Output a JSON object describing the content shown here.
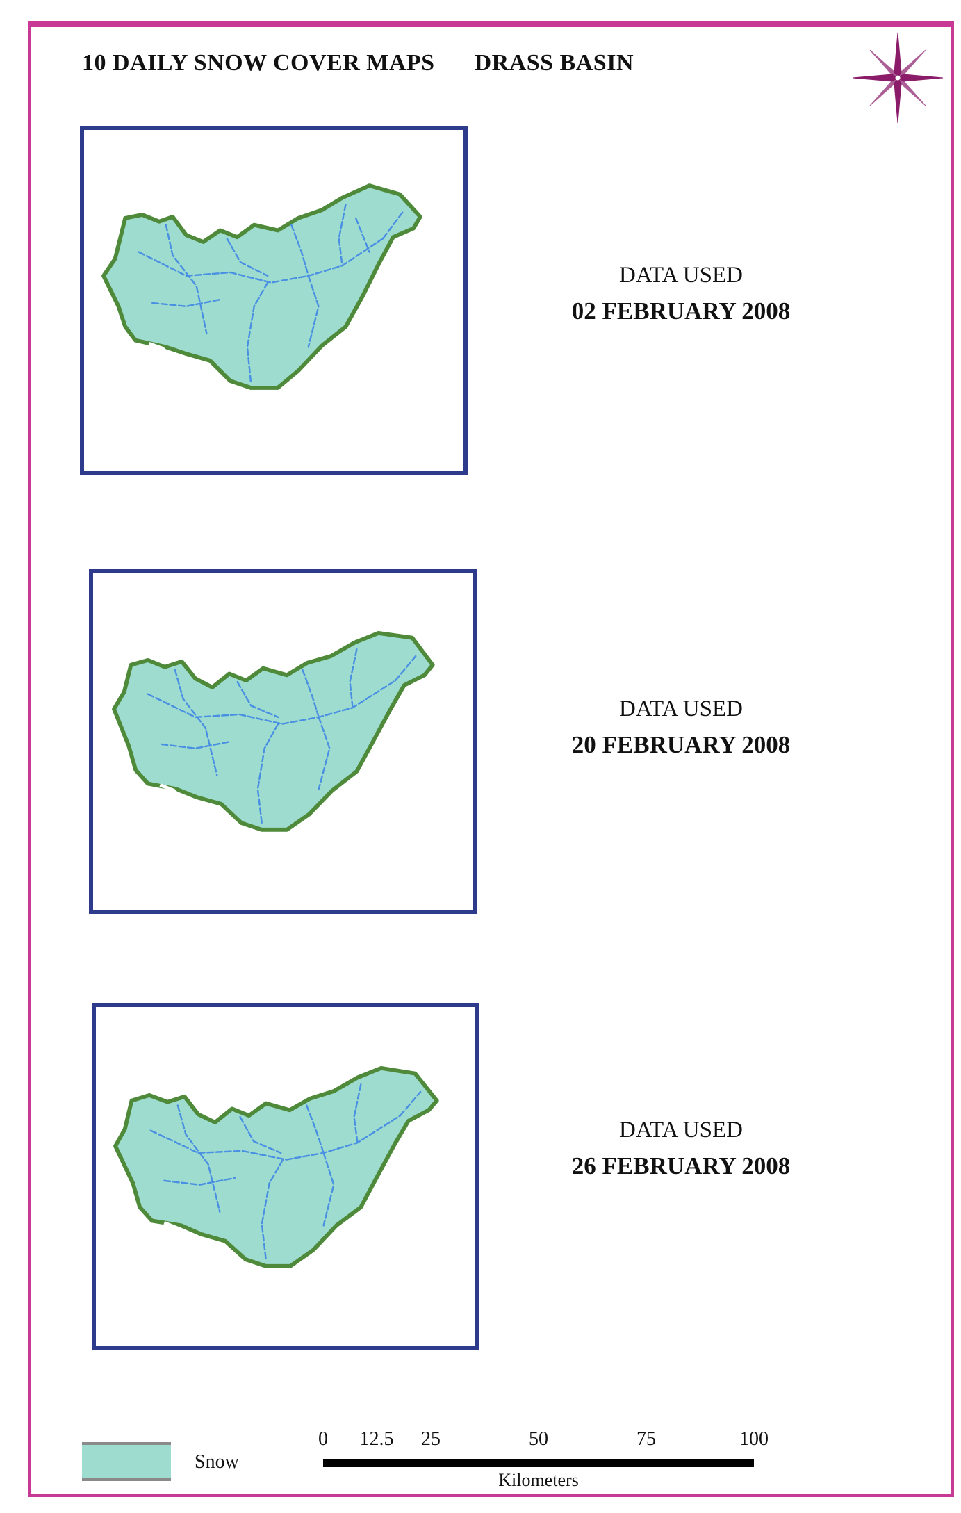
{
  "title": "10 DAILY SNOW COVER MAPS",
  "subtitle": "DRASS BASIN",
  "panels": [
    {
      "line1": "DATA USED",
      "line2": "02 FEBRUARY 2008"
    },
    {
      "line1": "DATA USED",
      "line2": "20 FEBRUARY 2008"
    },
    {
      "line1": "DATA USED",
      "line2": "26 FEBRUARY 2008"
    }
  ],
  "legend": {
    "label": "Snow"
  },
  "scale": {
    "ticks": [
      "0",
      "12.5",
      "25",
      "50",
      "75",
      "100"
    ],
    "unit": "Kilometers"
  },
  "colors": {
    "frame": "#c83a96",
    "map_border": "#2e3a8c",
    "snow": "#9edcd0",
    "basin_outline": "#4e8a3a",
    "rivers": "#4a90e2"
  },
  "icons": {
    "north_arrow": "compass-rose-icon"
  }
}
